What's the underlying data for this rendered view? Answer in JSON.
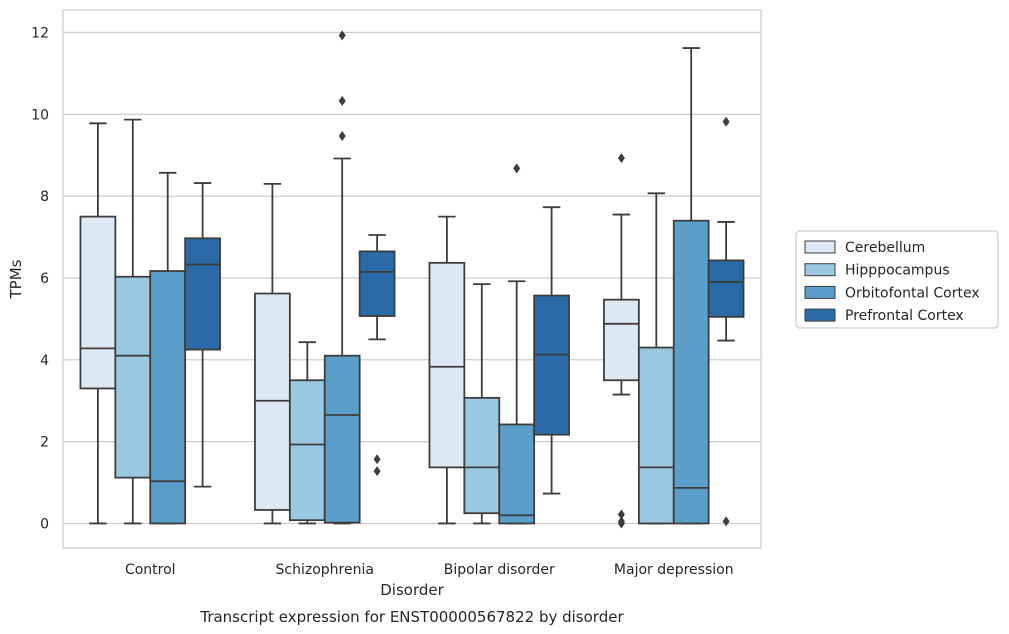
{
  "chart_data": {
    "type": "boxplot",
    "caption": "Transcript expression for ENST00000567822 by disorder",
    "xlabel": "Disorder",
    "ylabel": "TPMs",
    "ylim": [
      -0.6,
      12.55
    ],
    "yticks": [
      0,
      2,
      4,
      6,
      8,
      10,
      12
    ],
    "grid": true,
    "legend_position": "right",
    "categories": [
      "Control",
      "Schizophrenia",
      "Bipolar disorder",
      "Major depression"
    ],
    "series": [
      {
        "name": "Cerebellum",
        "color": "#dbe9f6",
        "boxes": [
          {
            "whislo": 0,
            "q1": 3.3,
            "med": 4.28,
            "q3": 7.5,
            "whishi": 9.78,
            "fliers": []
          },
          {
            "whislo": 0,
            "q1": 0.33,
            "med": 3.0,
            "q3": 5.62,
            "whishi": 8.3,
            "fliers": []
          },
          {
            "whislo": 0,
            "q1": 1.37,
            "med": 3.83,
            "q3": 6.37,
            "whishi": 7.5,
            "fliers": []
          },
          {
            "whislo": 3.15,
            "q1": 3.5,
            "med": 4.88,
            "q3": 5.47,
            "whishi": 7.55,
            "fliers": [
              8.93,
              0.22,
              0.05,
              0.0
            ]
          }
        ]
      },
      {
        "name": "Hipppocampus",
        "color": "#9ac8e0",
        "boxes": [
          {
            "whislo": 0,
            "q1": 1.12,
            "med": 4.1,
            "q3": 6.03,
            "whishi": 9.87,
            "fliers": []
          },
          {
            "whislo": 0,
            "q1": 0.08,
            "med": 1.93,
            "q3": 3.5,
            "whishi": 4.43,
            "fliers": []
          },
          {
            "whislo": 0,
            "q1": 0.25,
            "med": 1.37,
            "q3": 3.07,
            "whishi": 5.85,
            "fliers": []
          },
          {
            "whislo": 0,
            "q1": 0,
            "med": 1.37,
            "q3": 4.3,
            "whishi": 8.07,
            "fliers": []
          }
        ]
      },
      {
        "name": "Orbitofontal Cortex",
        "color": "#5a9ec9",
        "boxes": [
          {
            "whislo": 0,
            "q1": 0,
            "med": 1.03,
            "q3": 6.17,
            "whishi": 8.57,
            "fliers": []
          },
          {
            "whislo": 0,
            "q1": 0.02,
            "med": 2.65,
            "q3": 4.1,
            "whishi": 8.92,
            "fliers": [
              11.93,
              10.33,
              9.47
            ]
          },
          {
            "whislo": 0,
            "q1": 0,
            "med": 0.2,
            "q3": 2.42,
            "whishi": 5.92,
            "fliers": [
              8.68
            ]
          },
          {
            "whislo": 0,
            "q1": 0,
            "med": 0.87,
            "q3": 7.4,
            "whishi": 11.62,
            "fliers": []
          }
        ]
      },
      {
        "name": "Prefrontal Cortex",
        "color": "#2a6aa8",
        "boxes": [
          {
            "whislo": 0.9,
            "q1": 4.25,
            "med": 6.33,
            "q3": 6.97,
            "whishi": 8.32,
            "fliers": []
          },
          {
            "whislo": 4.5,
            "q1": 5.07,
            "med": 6.15,
            "q3": 6.65,
            "whishi": 7.05,
            "fliers": [
              1.57,
              1.28
            ]
          },
          {
            "whislo": 0.73,
            "q1": 2.17,
            "med": 4.13,
            "q3": 5.57,
            "whishi": 7.73,
            "fliers": []
          },
          {
            "whislo": 4.47,
            "q1": 5.05,
            "med": 5.9,
            "q3": 6.43,
            "whishi": 7.37,
            "fliers": [
              9.82,
              0.05
            ]
          }
        ]
      }
    ]
  }
}
